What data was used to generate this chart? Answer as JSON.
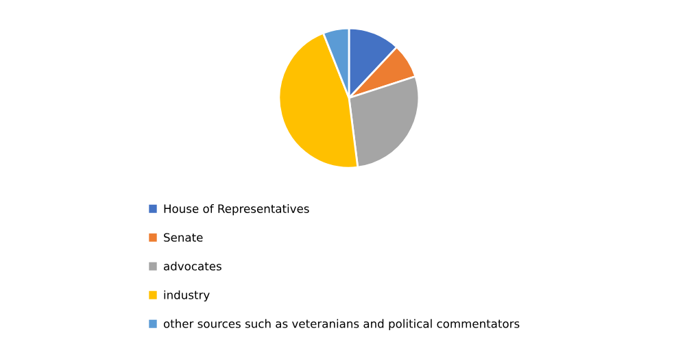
{
  "chart_data": {
    "type": "pie",
    "categories": [
      "House of Representatives",
      "Senate",
      "advocates",
      "industry",
      "other sources such as veteranians and political commentators"
    ],
    "values": [
      12,
      8,
      28,
      46,
      6
    ],
    "colors": [
      "#4472c4",
      "#ed7d31",
      "#a5a5a5",
      "#ffc000",
      "#5b9bd5"
    ],
    "legend": "bottom"
  }
}
